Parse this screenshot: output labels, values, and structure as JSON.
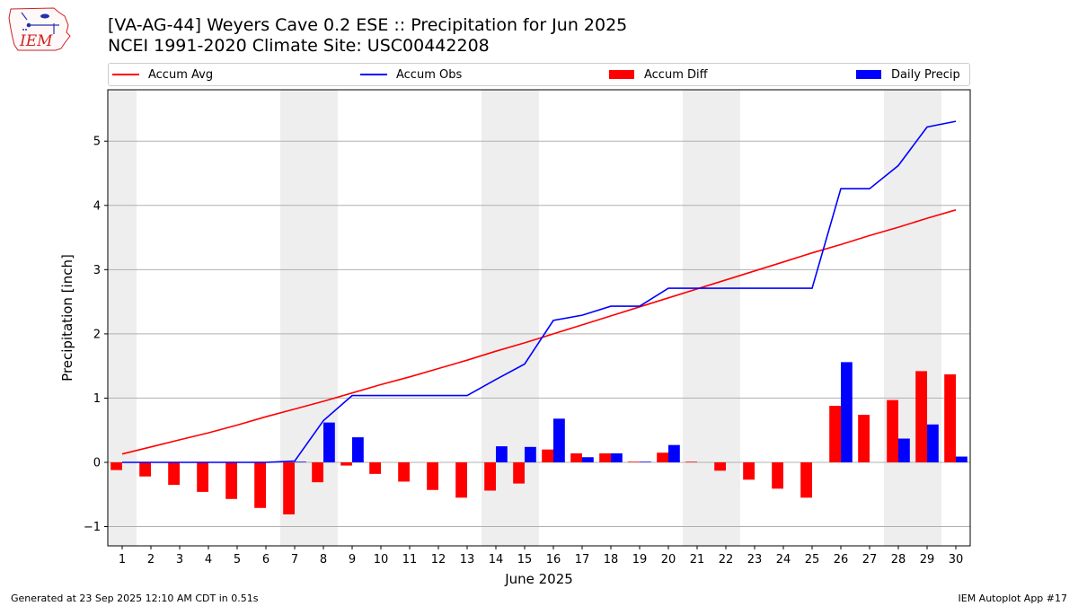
{
  "title_line1": "[VA-AG-44] Weyers Cave 0.2 ESE :: Precipitation for Jun 2025",
  "title_line2": "NCEI 1991-2020 Climate Site: USC00442208",
  "logo_text": "IEM",
  "footer_left": "Generated at 23 Sep 2025 12:10 AM CDT in 0.51s",
  "footer_right": "IEM Autoplot App #17",
  "legend": [
    {
      "label": "Accum Avg",
      "kind": "line",
      "color": "#ff0000"
    },
    {
      "label": "Accum Obs",
      "kind": "line",
      "color": "#0000ff"
    },
    {
      "label": "Accum Diff",
      "kind": "bar",
      "color": "#ff0000"
    },
    {
      "label": "Daily Precip",
      "kind": "bar",
      "color": "#0000ff"
    }
  ],
  "chart_data": {
    "type": "bar",
    "xlabel": "June 2025",
    "ylabel": "Precipitation [inch]",
    "x": [
      1,
      2,
      3,
      4,
      5,
      6,
      7,
      8,
      9,
      10,
      11,
      12,
      13,
      14,
      15,
      16,
      17,
      18,
      19,
      20,
      21,
      22,
      23,
      24,
      25,
      26,
      27,
      28,
      29,
      30
    ],
    "x_range": [
      0.5,
      30.5
    ],
    "ylim": [
      -1.3,
      5.8
    ],
    "yticks": [
      -1,
      0,
      1,
      2,
      3,
      4,
      5
    ],
    "grid": "horizontal",
    "weekend_shading": [
      [
        0.5,
        1.5
      ],
      [
        6.5,
        8.5
      ],
      [
        13.5,
        15.5
      ],
      [
        20.5,
        22.5
      ],
      [
        27.5,
        29.5
      ]
    ],
    "series": [
      {
        "name": "Accum Avg",
        "type": "line",
        "color": "#ff0000",
        "values": [
          0.13,
          0.24,
          0.35,
          0.46,
          0.58,
          0.71,
          0.83,
          0.95,
          1.08,
          1.21,
          1.33,
          1.46,
          1.59,
          1.73,
          1.86,
          2.0,
          2.14,
          2.28,
          2.42,
          2.56,
          2.7,
          2.84,
          2.98,
          3.12,
          3.26,
          3.39,
          3.53,
          3.66,
          3.8,
          3.93
        ]
      },
      {
        "name": "Accum Obs",
        "type": "line",
        "color": "#0000ff",
        "values": [
          0.0,
          0.0,
          0.0,
          0.0,
          0.0,
          0.0,
          0.02,
          0.65,
          1.04,
          1.04,
          1.04,
          1.04,
          1.04,
          1.29,
          1.53,
          2.21,
          2.29,
          2.43,
          2.43,
          2.71,
          2.71,
          2.71,
          2.71,
          2.71,
          2.71,
          4.26,
          4.26,
          4.62,
          5.22,
          5.31
        ]
      },
      {
        "name": "Accum Diff",
        "type": "bar",
        "color": "#ff0000",
        "values": [
          -0.12,
          -0.22,
          -0.35,
          -0.46,
          -0.57,
          -0.71,
          -0.81,
          -0.31,
          -0.05,
          -0.18,
          -0.3,
          -0.43,
          -0.55,
          -0.44,
          -0.33,
          0.2,
          0.14,
          0.14,
          0.01,
          0.15,
          0.01,
          -0.13,
          -0.27,
          -0.41,
          -0.55,
          0.88,
          0.74,
          0.97,
          1.42,
          1.37
        ]
      },
      {
        "name": "Daily Precip",
        "type": "bar",
        "color": "#0000ff",
        "values": [
          0,
          0,
          0,
          0,
          0,
          0,
          0.01,
          0.62,
          0.39,
          0,
          0,
          0,
          0,
          0.25,
          0.24,
          0.68,
          0.08,
          0.14,
          0.01,
          0.27,
          0,
          0,
          0,
          0,
          0,
          1.56,
          0,
          0.37,
          0.59,
          0.09
        ]
      }
    ]
  }
}
